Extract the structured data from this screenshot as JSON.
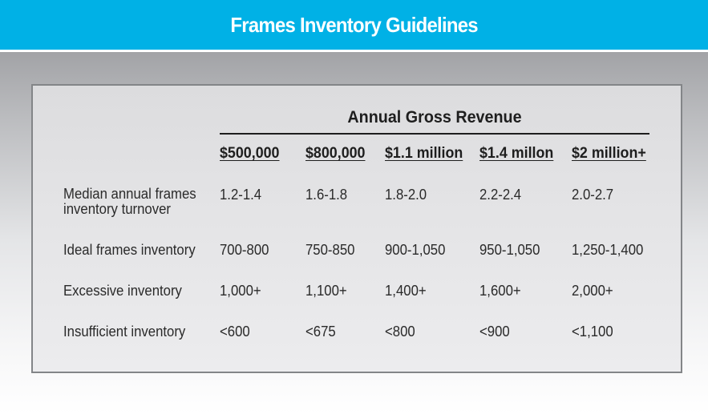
{
  "title": "Frames Inventory Guidelines",
  "table": {
    "group_header": "Annual Gross Revenue",
    "columns": [
      "$500,000",
      "$800,000",
      "$1.1 million",
      "$1.4 millon",
      "$2 million+"
    ],
    "rows": [
      {
        "label_line1": "Median annual frames",
        "label_line2": "inventory turnover",
        "values": [
          "1.2-1.4",
          "1.6-1.8",
          "1.8-2.0",
          "2.2-2.4",
          "2.0-2.7"
        ]
      },
      {
        "label_line1": "Ideal frames inventory",
        "values": [
          "700-800",
          "750-850",
          "900-1,050",
          "950-1,050",
          "1,250-1,400"
        ]
      },
      {
        "label_line1": "Excessive inventory",
        "values": [
          "1,000+",
          "1,100+",
          "1,400+",
          "1,600+",
          "2,000+"
        ]
      },
      {
        "label_line1": "Insufficient inventory",
        "values": [
          "<600",
          "<675",
          "<800",
          "<900",
          "<1,100"
        ]
      }
    ]
  }
}
